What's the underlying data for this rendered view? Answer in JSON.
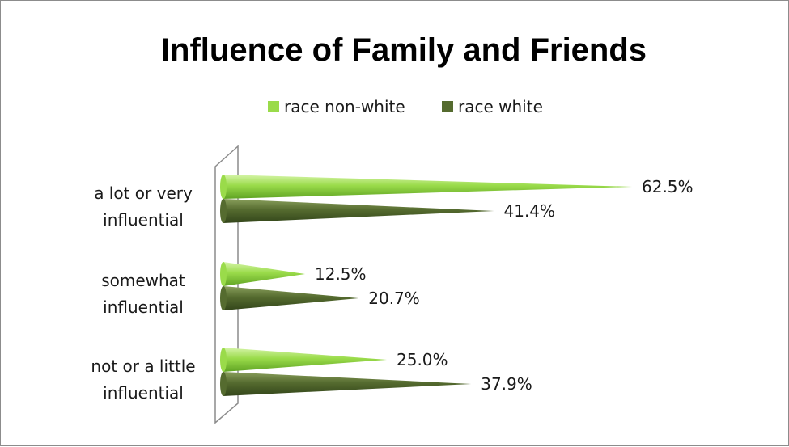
{
  "chart_data": {
    "type": "bar",
    "orientation": "horizontal",
    "title": "Influence of Family and Friends",
    "categories": [
      [
        "a lot or very",
        "influential"
      ],
      [
        "somewhat",
        "influential"
      ],
      [
        "not or a little",
        "influential"
      ]
    ],
    "series": [
      {
        "name": "race non-white",
        "values": [
          62.5,
          12.5,
          25.0
        ],
        "labels": [
          "62.5%",
          "12.5%",
          "25.0%"
        ],
        "color": "#9ADB4A",
        "color_dark": "#6FB62A"
      },
      {
        "name": "race white",
        "values": [
          41.4,
          20.7,
          37.9
        ],
        "labels": [
          "41.4%",
          "20.7%",
          "37.9%"
        ],
        "color": "#556B2F",
        "color_dark": "#3A4D1E"
      }
    ],
    "xlim": [
      0,
      70
    ],
    "legend_position": "top",
    "grid": false,
    "bar_shape": "cone"
  }
}
